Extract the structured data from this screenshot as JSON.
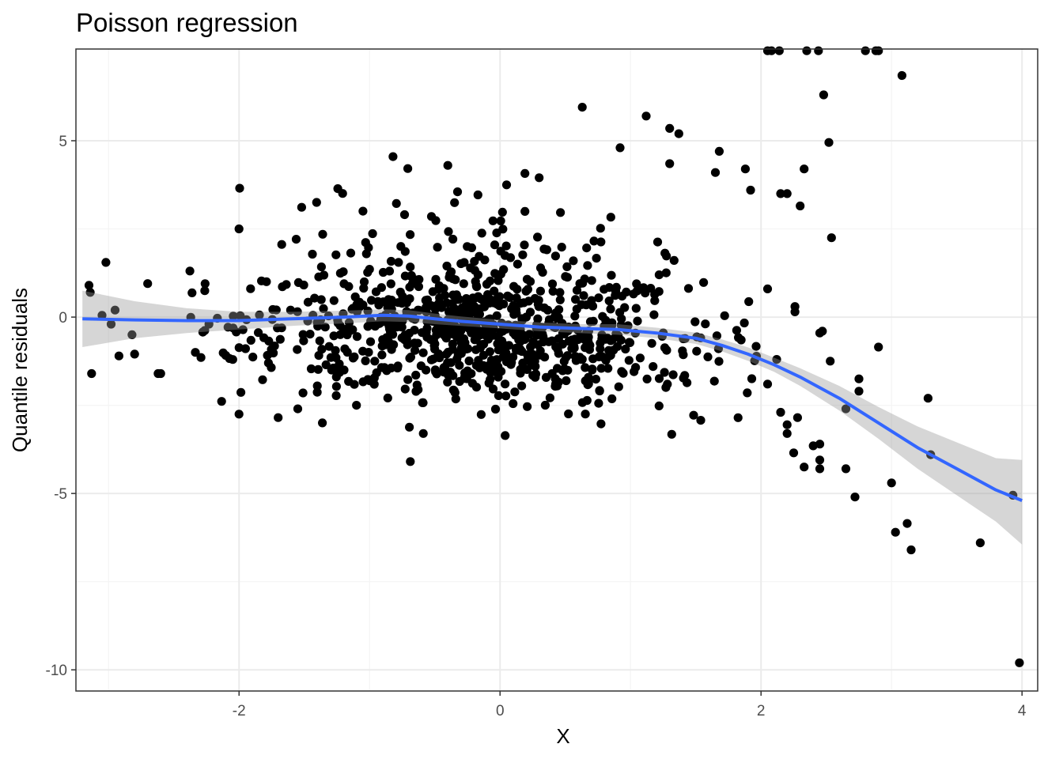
{
  "chart_data": {
    "type": "scatter",
    "title": "Poisson regression",
    "xlabel": "X",
    "ylabel": "Quantile residuals",
    "xlim": [
      -3.25,
      4.12
    ],
    "ylim": [
      -10.6,
      7.6
    ],
    "xticks": [
      -2,
      0,
      2,
      4
    ],
    "yticks": [
      -10,
      -5,
      0,
      5
    ],
    "xtick_labels": [
      "-2",
      "0",
      "2",
      "4"
    ],
    "ytick_labels": [
      "-10",
      "-5",
      "0",
      "5"
    ],
    "grid": true,
    "legend": "none",
    "colors": {
      "points": "#000000",
      "smooth_line": "#3366ff",
      "confidence_band": "#999999",
      "grid_major": "#ebebeb",
      "grid_minor": "#f4f4f4",
      "panel_border": "#333333"
    },
    "smooth": {
      "x": [
        -3.2,
        -2.8,
        -2.4,
        -2.0,
        -1.6,
        -1.2,
        -0.9,
        -0.7,
        -0.5,
        -0.3,
        0.0,
        0.3,
        0.6,
        0.9,
        1.2,
        1.5,
        1.7,
        1.9,
        2.1,
        2.3,
        2.6,
        2.9,
        3.2,
        3.5,
        3.8,
        4.0
      ],
      "y": [
        -0.05,
        -0.08,
        -0.1,
        -0.1,
        -0.05,
        0.0,
        0.05,
        0.03,
        -0.05,
        -0.12,
        -0.2,
        -0.28,
        -0.32,
        -0.35,
        -0.45,
        -0.6,
        -0.8,
        -1.05,
        -1.35,
        -1.7,
        -2.3,
        -3.0,
        -3.7,
        -4.3,
        -4.9,
        -5.2
      ],
      "ci_low": [
        -0.85,
        -0.6,
        -0.45,
        -0.35,
        -0.25,
        -0.18,
        -0.12,
        -0.14,
        -0.2,
        -0.25,
        -0.32,
        -0.4,
        -0.45,
        -0.5,
        -0.6,
        -0.76,
        -0.97,
        -1.24,
        -1.55,
        -1.95,
        -2.65,
        -3.45,
        -4.3,
        -5.05,
        -5.8,
        -6.45
      ],
      "ci_high": [
        0.75,
        0.45,
        0.25,
        0.15,
        0.15,
        0.18,
        0.22,
        0.2,
        0.1,
        0.02,
        -0.08,
        -0.15,
        -0.2,
        -0.2,
        -0.3,
        -0.44,
        -0.63,
        -0.86,
        -1.15,
        -1.45,
        -1.95,
        -2.55,
        -3.1,
        -3.55,
        -4.0,
        -4.05
      ]
    },
    "outliers": [
      {
        "x": -3.15,
        "y": 0.9
      },
      {
        "x": -3.14,
        "y": 0.7
      },
      {
        "x": -3.13,
        "y": -1.6
      },
      {
        "x": -3.05,
        "y": 0.05
      },
      {
        "x": -3.02,
        "y": 1.55
      },
      {
        "x": -2.95,
        "y": 0.2
      },
      {
        "x": -2.98,
        "y": -0.2
      },
      {
        "x": -2.92,
        "y": -1.1
      },
      {
        "x": -2.82,
        "y": -0.5
      },
      {
        "x": -2.8,
        "y": -1.05
      },
      {
        "x": -2.7,
        "y": 0.95
      },
      {
        "x": -2.62,
        "y": -1.6
      },
      {
        "x": -2.6,
        "y": -1.6
      },
      {
        "x": -2.0,
        "y": 2.5
      },
      {
        "x": -2.0,
        "y": -2.75
      },
      {
        "x": -1.7,
        "y": -2.85
      },
      {
        "x": -1.55,
        "y": -2.6
      },
      {
        "x": -1.4,
        "y": -1.95
      },
      {
        "x": -1.1,
        "y": -2.5
      },
      {
        "x": -0.82,
        "y": 4.55
      },
      {
        "x": -0.4,
        "y": 4.3
      },
      {
        "x": 0.05,
        "y": 3.75
      },
      {
        "x": 0.3,
        "y": 3.95
      },
      {
        "x": 0.63,
        "y": 5.95
      },
      {
        "x": 0.92,
        "y": 4.8
      },
      {
        "x": 1.12,
        "y": 5.7
      },
      {
        "x": 1.3,
        "y": 5.35
      },
      {
        "x": 1.37,
        "y": 5.2
      },
      {
        "x": 1.3,
        "y": 4.35
      },
      {
        "x": 1.68,
        "y": 4.7
      },
      {
        "x": 1.65,
        "y": 4.1
      },
      {
        "x": 1.88,
        "y": 4.2
      },
      {
        "x": 1.92,
        "y": 3.6
      },
      {
        "x": 2.15,
        "y": 3.5
      },
      {
        "x": 2.2,
        "y": 3.5
      },
      {
        "x": 2.3,
        "y": 3.15
      },
      {
        "x": 2.33,
        "y": 4.2
      },
      {
        "x": 2.48,
        "y": 6.3
      },
      {
        "x": 2.52,
        "y": 4.95
      },
      {
        "x": 2.54,
        "y": 2.25
      },
      {
        "x": 2.05,
        "y": 0.8
      },
      {
        "x": 2.26,
        "y": 0.3
      },
      {
        "x": 2.26,
        "y": 0.15
      },
      {
        "x": 3.08,
        "y": 6.85
      },
      {
        "x": 2.05,
        "y": 7.55
      },
      {
        "x": 2.08,
        "y": 7.55
      },
      {
        "x": 2.14,
        "y": 7.55
      },
      {
        "x": 2.35,
        "y": 7.55
      },
      {
        "x": 2.44,
        "y": 7.55
      },
      {
        "x": 2.8,
        "y": 7.55
      },
      {
        "x": 2.88,
        "y": 7.55
      },
      {
        "x": 2.9,
        "y": 7.55
      },
      {
        "x": 2.9,
        "y": -0.85
      },
      {
        "x": 2.75,
        "y": -1.75
      },
      {
        "x": 2.75,
        "y": -2.1
      },
      {
        "x": 2.65,
        "y": -2.6
      },
      {
        "x": 2.65,
        "y": -4.3
      },
      {
        "x": 2.72,
        "y": -5.1
      },
      {
        "x": 2.53,
        "y": -1.25
      },
      {
        "x": 2.47,
        "y": -0.4
      },
      {
        "x": 2.45,
        "y": -0.45
      },
      {
        "x": 2.45,
        "y": -3.6
      },
      {
        "x": 2.45,
        "y": -4.05
      },
      {
        "x": 2.45,
        "y": -4.3
      },
      {
        "x": 2.4,
        "y": -3.65
      },
      {
        "x": 2.33,
        "y": -4.25
      },
      {
        "x": 2.28,
        "y": -2.85
      },
      {
        "x": 2.25,
        "y": -3.85
      },
      {
        "x": 2.2,
        "y": -3.05
      },
      {
        "x": 2.2,
        "y": -3.3
      },
      {
        "x": 2.15,
        "y": -2.7
      },
      {
        "x": 2.12,
        "y": -1.2
      },
      {
        "x": 2.05,
        "y": -1.9
      },
      {
        "x": 3.0,
        "y": -4.7
      },
      {
        "x": 3.03,
        "y": -6.1
      },
      {
        "x": 3.12,
        "y": -5.85
      },
      {
        "x": 3.15,
        "y": -6.6
      },
      {
        "x": 3.28,
        "y": -2.3
      },
      {
        "x": 3.3,
        "y": -3.9
      },
      {
        "x": 3.68,
        "y": -6.4
      },
      {
        "x": 3.93,
        "y": -5.05
      },
      {
        "x": 3.98,
        "y": -9.8
      }
    ],
    "cloud": {
      "n": 920,
      "x_range": [
        -2.5,
        2.0
      ],
      "x_center": -0.2,
      "note": "dense cluster of points around the smooth line"
    }
  }
}
